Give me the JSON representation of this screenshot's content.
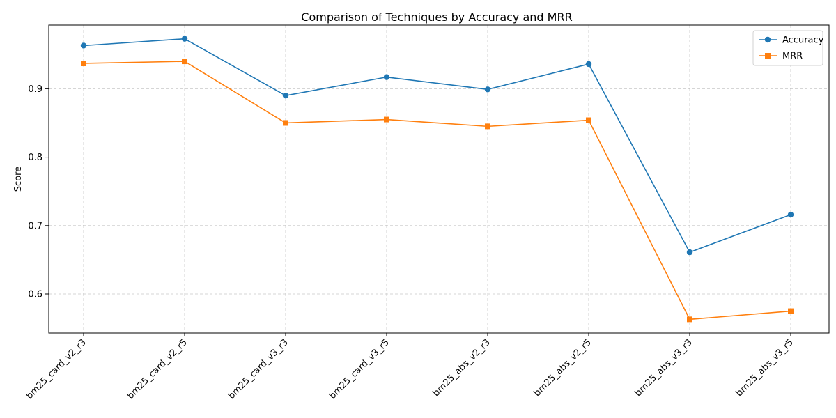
{
  "chart_data": {
    "type": "line",
    "title": "Comparison of Techniques by Accuracy and MRR",
    "xlabel": "",
    "ylabel": "Score",
    "categories": [
      "bm25_card_v2_r3",
      "bm25_card_v2_r5",
      "bm25_card_v3_r3",
      "bm25_card_v3_r5",
      "bm25_abs_v2_r3",
      "bm25_abs_v2_r5",
      "bm25_abs_v3_r3",
      "bm25_abs_v3_r5"
    ],
    "series": [
      {
        "name": "Accuracy",
        "color": "#1f77b4",
        "marker": "circle",
        "values": [
          0.963,
          0.973,
          0.89,
          0.917,
          0.899,
          0.936,
          0.661,
          0.716
        ]
      },
      {
        "name": "MRR",
        "color": "#ff7f0e",
        "marker": "square",
        "values": [
          0.937,
          0.94,
          0.85,
          0.855,
          0.845,
          0.854,
          0.563,
          0.575
        ]
      }
    ],
    "ylim": [
      0.543,
      0.993
    ],
    "yticks": [
      0.6,
      0.7,
      0.8,
      0.9
    ],
    "ytick_labels": [
      "0.6",
      "0.7",
      "0.8",
      "0.9"
    ],
    "grid": true,
    "legend_position": "top-right"
  }
}
